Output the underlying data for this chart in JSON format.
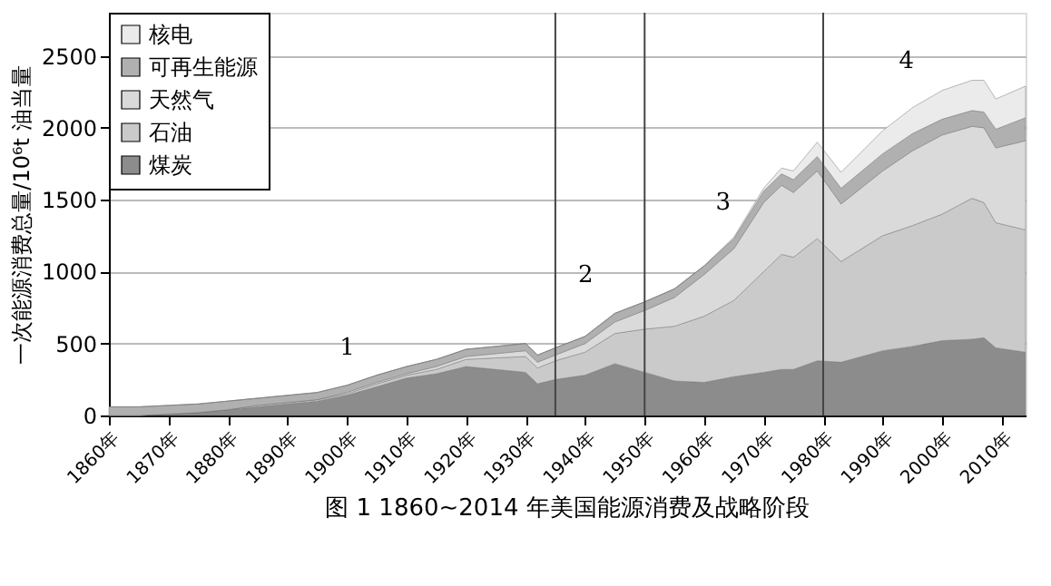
{
  "chart_data": {
    "type": "area",
    "stacked": true,
    "title": "图 1  1860~2014 年美国能源消费及战略阶段",
    "ylabel": "一次能源消费总量/10⁶t 油当量",
    "x": [
      1860,
      1865,
      1870,
      1875,
      1880,
      1885,
      1890,
      1895,
      1900,
      1905,
      1910,
      1915,
      1920,
      1925,
      1930,
      1932,
      1935,
      1940,
      1945,
      1950,
      1955,
      1960,
      1965,
      1970,
      1973,
      1975,
      1979,
      1983,
      1990,
      1995,
      2000,
      2005,
      2007,
      2009,
      2014
    ],
    "series": [
      {
        "name": "煤炭",
        "color": "#8c8c8c",
        "values": [
          0,
          0,
          10,
          20,
          40,
          60,
          80,
          100,
          140,
          200,
          260,
          290,
          340,
          320,
          300,
          220,
          250,
          280,
          360,
          300,
          240,
          230,
          270,
          300,
          320,
          320,
          380,
          370,
          450,
          480,
          520,
          530,
          540,
          470,
          440
        ]
      },
      {
        "name": "石油",
        "color": "#cacaca",
        "values": [
          0,
          0,
          0,
          0,
          0,
          10,
          10,
          10,
          10,
          20,
          20,
          30,
          50,
          80,
          110,
          110,
          130,
          160,
          210,
          300,
          380,
          460,
          530,
          700,
          800,
          780,
          850,
          700,
          800,
          840,
          880,
          980,
          940,
          870,
          850
        ]
      },
      {
        "name": "天然气",
        "color": "#dadada",
        "values": [
          0,
          0,
          0,
          0,
          0,
          0,
          0,
          0,
          10,
          10,
          10,
          20,
          20,
          30,
          40,
          40,
          40,
          60,
          80,
          130,
          200,
          290,
          360,
          480,
          480,
          450,
          470,
          400,
          450,
          520,
          550,
          500,
          520,
          520,
          620
        ]
      },
      {
        "name": "可再生能源",
        "color": "#b0b0b0",
        "values": [
          60,
          60,
          60,
          60,
          60,
          50,
          50,
          50,
          50,
          50,
          50,
          50,
          50,
          50,
          50,
          50,
          50,
          50,
          60,
          60,
          60,
          60,
          70,
          80,
          80,
          90,
          100,
          110,
          120,
          120,
          110,
          110,
          110,
          130,
          160
        ]
      },
      {
        "name": "核电",
        "color": "#ebebeb",
        "values": [
          0,
          0,
          0,
          0,
          0,
          0,
          0,
          0,
          0,
          0,
          0,
          0,
          0,
          0,
          0,
          0,
          0,
          0,
          0,
          0,
          0,
          0,
          10,
          20,
          40,
          60,
          100,
          110,
          160,
          180,
          200,
          210,
          220,
          210,
          220
        ]
      }
    ],
    "xlim": [
      1860,
      2014
    ],
    "xticks": [
      {
        "value": 1860,
        "label": "1860年"
      },
      {
        "value": 1870,
        "label": "1870年"
      },
      {
        "value": 1880,
        "label": "1880年"
      },
      {
        "value": 1890,
        "label": "1890年"
      },
      {
        "value": 1900,
        "label": "1900年"
      },
      {
        "value": 1910,
        "label": "1910年"
      },
      {
        "value": 1920,
        "label": "1920年"
      },
      {
        "value": 1930,
        "label": "1930年"
      },
      {
        "value": 1940,
        "label": "1940年"
      },
      {
        "value": 1950,
        "label": "1950年"
      },
      {
        "value": 1960,
        "label": "1960年"
      },
      {
        "value": 1970,
        "label": "1970年"
      },
      {
        "value": 1980,
        "label": "1980年"
      },
      {
        "value": 1990,
        "label": "1990年"
      },
      {
        "value": 2000,
        "label": "2000年"
      },
      {
        "value": 2010,
        "label": "2010年"
      }
    ],
    "ylim": [
      0,
      2800
    ],
    "yticks": [
      0,
      500,
      1000,
      1500,
      2000,
      2500
    ],
    "grid": "y",
    "legend": "top left",
    "ref_lines": [
      {
        "axis": "x",
        "value": 1935,
        "color": "#444444"
      },
      {
        "axis": "x",
        "value": 1950,
        "color": "#444444"
      },
      {
        "axis": "x",
        "value": 1980,
        "color": "#444444"
      }
    ],
    "annotations": [
      "1",
      "2",
      "3",
      "4"
    ]
  }
}
